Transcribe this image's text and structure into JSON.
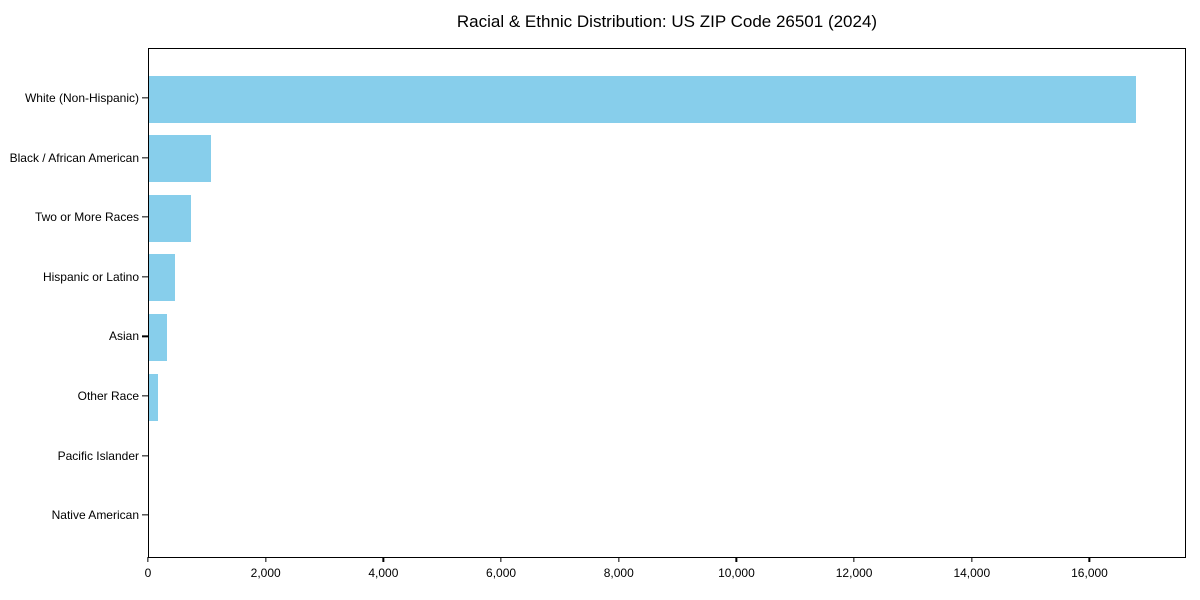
{
  "colors": {
    "bar": "#87CEEB",
    "axis": "#000000",
    "background": "#FFFFFF",
    "text": "#000000"
  },
  "chart_data": {
    "type": "bar",
    "orientation": "horizontal",
    "title": "Racial & Ethnic Distribution: US ZIP Code 26501 (2024)",
    "xlabel": "",
    "ylabel": "",
    "categories": [
      "White (Non-Hispanic)",
      "Black / African American",
      "Two or More Races",
      "Hispanic or Latino",
      "Asian",
      "Other Race",
      "Pacific Islander",
      "Native American"
    ],
    "values": [
      16800,
      1060,
      715,
      450,
      300,
      150,
      0,
      0
    ],
    "xlim": [
      0,
      17640
    ],
    "x_ticks": [
      0,
      2000,
      4000,
      6000,
      8000,
      10000,
      12000,
      14000,
      16000
    ],
    "x_tick_labels": [
      "0",
      "2,000",
      "4,000",
      "6,000",
      "8,000",
      "10,000",
      "12,000",
      "14,000",
      "16,000"
    ],
    "grid": false,
    "legend": "none",
    "bar_color": "#87CEEB"
  }
}
